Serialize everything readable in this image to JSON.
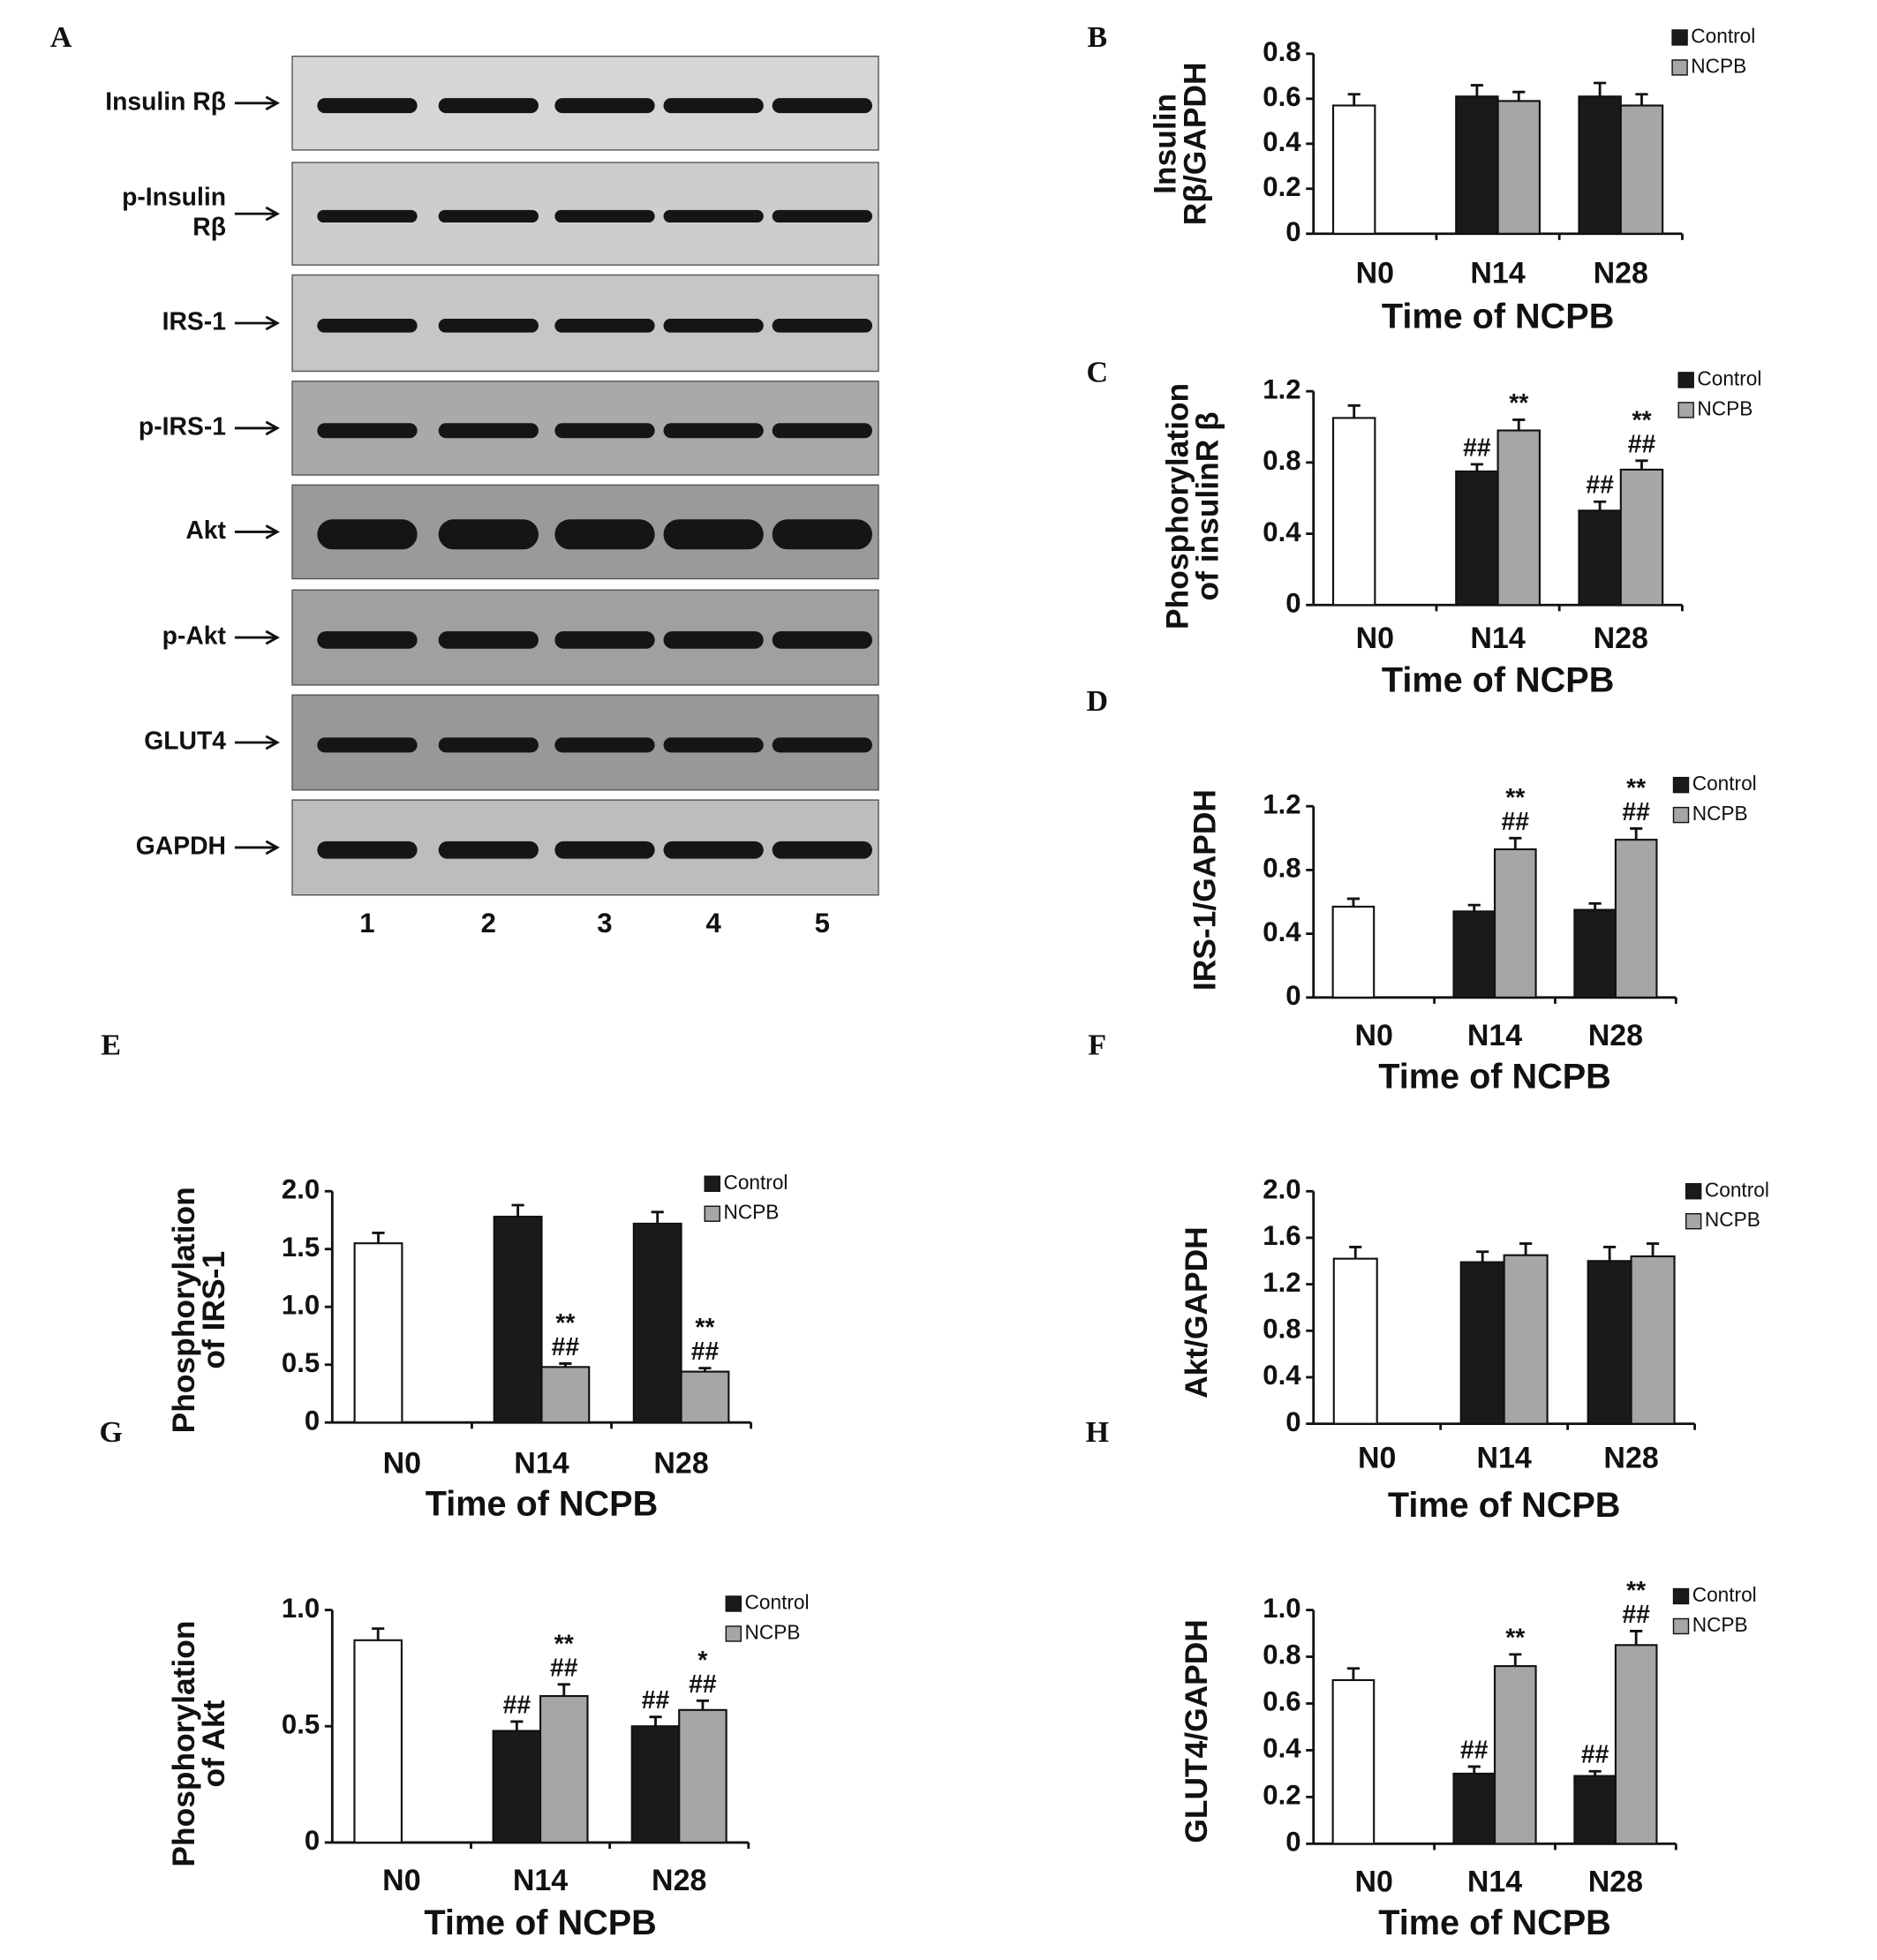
{
  "panel_labels": [
    "A",
    "B",
    "C",
    "D",
    "E",
    "F",
    "G",
    "H"
  ],
  "blot": {
    "labels": [
      [
        "Insulin Rβ"
      ],
      [
        "p-Insulin",
        "Rβ"
      ],
      [
        "IRS-1"
      ],
      [
        "p-IRS-1"
      ],
      [
        "Akt"
      ],
      [
        "p-Akt"
      ],
      [
        "GLUT4"
      ],
      [
        "GAPDH"
      ]
    ],
    "lanes": [
      "1",
      "2",
      "3",
      "4",
      "5"
    ]
  },
  "chart_data": [
    {
      "type": "bar",
      "ylabel": [
        "Insulin",
        "Rβ/GAPDH"
      ],
      "xlabel": "Time of NCPB",
      "categories": [
        "N0",
        "N14",
        "N28"
      ],
      "ylim": [
        0,
        0.8
      ],
      "yticks": [
        0,
        0.2,
        0.4,
        0.6,
        0.8
      ],
      "grid": false,
      "series": [
        {
          "color": "#ffffff",
          "values": [
            0.57,
            null,
            null
          ],
          "errors": [
            0.05,
            null,
            null
          ]
        },
        {
          "name": "Control",
          "color": "#1a1a1a",
          "values": [
            null,
            0.61,
            0.61
          ],
          "errors": [
            null,
            0.05,
            0.06
          ]
        },
        {
          "name": "NCPB",
          "color": "#a6a6a6",
          "values": [
            null,
            0.59,
            0.57
          ],
          "errors": [
            null,
            0.04,
            0.05
          ]
        }
      ]
    },
    {
      "type": "bar",
      "ylabel": [
        "Phosphorylation",
        "of insulinR β"
      ],
      "xlabel": "Time of NCPB",
      "categories": [
        "N0",
        "N14",
        "N28"
      ],
      "ylim": [
        0,
        1.2
      ],
      "yticks": [
        0,
        0.4,
        0.8,
        1.2
      ],
      "grid": false,
      "series": [
        {
          "color": "#ffffff",
          "values": [
            1.05,
            null,
            null
          ],
          "errors": [
            0.07,
            null,
            null
          ]
        },
        {
          "name": "Control",
          "color": "#1a1a1a",
          "values": [
            null,
            0.75,
            0.53
          ],
          "errors": [
            null,
            0.04,
            0.05
          ],
          "annotations": [
            null,
            [
              "##"
            ],
            [
              "##"
            ]
          ]
        },
        {
          "name": "NCPB",
          "color": "#a6a6a6",
          "values": [
            null,
            0.98,
            0.76
          ],
          "errors": [
            null,
            0.06,
            0.05
          ],
          "annotations": [
            null,
            [
              "**"
            ],
            [
              "**",
              "##"
            ]
          ]
        }
      ]
    },
    {
      "type": "bar",
      "ylabel": [
        "IRS-1/GAPDH"
      ],
      "xlabel": "Time of NCPB",
      "categories": [
        "N0",
        "N14",
        "N28"
      ],
      "ylim": [
        0,
        1.2
      ],
      "yticks": [
        0,
        0.4,
        0.8,
        1.2
      ],
      "grid": false,
      "series": [
        {
          "color": "#ffffff",
          "values": [
            0.57,
            null,
            null
          ],
          "errors": [
            0.05,
            null,
            null
          ]
        },
        {
          "name": "Control",
          "color": "#1a1a1a",
          "values": [
            null,
            0.54,
            0.55
          ],
          "errors": [
            null,
            0.04,
            0.04
          ]
        },
        {
          "name": "NCPB",
          "color": "#a6a6a6",
          "values": [
            null,
            0.93,
            0.99
          ],
          "errors": [
            null,
            0.07,
            0.07
          ],
          "annotations": [
            null,
            [
              "**",
              "##"
            ],
            [
              "**",
              "##"
            ]
          ]
        }
      ]
    },
    {
      "type": "bar",
      "ylabel": [
        "Phosphorylation",
        "of IRS-1"
      ],
      "xlabel": "Time of NCPB",
      "categories": [
        "N0",
        "N14",
        "N28"
      ],
      "ylim": [
        0,
        2
      ],
      "yticks": [
        0,
        0.5,
        {
          "value": 1,
          "label": "1.0"
        },
        1.5,
        {
          "value": 2,
          "label": "2.0"
        }
      ],
      "grid": false,
      "series": [
        {
          "color": "#ffffff",
          "values": [
            1.55,
            null,
            null
          ],
          "errors": [
            0.09,
            null,
            null
          ]
        },
        {
          "name": "Control",
          "color": "#1a1a1a",
          "values": [
            null,
            1.78,
            1.72
          ],
          "errors": [
            null,
            0.1,
            0.1
          ]
        },
        {
          "name": "NCPB",
          "color": "#a6a6a6",
          "values": [
            null,
            0.48,
            0.44
          ],
          "errors": [
            null,
            0.03,
            0.03
          ],
          "annotations": [
            null,
            [
              "**",
              "##"
            ],
            [
              "**",
              "##"
            ]
          ]
        }
      ]
    },
    {
      "type": "bar",
      "ylabel": [
        "Akt/GAPDH"
      ],
      "xlabel": "Time of NCPB",
      "categories": [
        "N0",
        "N14",
        "N28"
      ],
      "ylim": [
        0,
        2
      ],
      "yticks": [
        0,
        0.4,
        0.8,
        1.2,
        1.6,
        {
          "value": 2,
          "label": "2.0"
        }
      ],
      "grid": false,
      "series": [
        {
          "color": "#ffffff",
          "values": [
            1.42,
            null,
            null
          ],
          "errors": [
            0.1,
            null,
            null
          ]
        },
        {
          "name": "Control",
          "color": "#1a1a1a",
          "values": [
            null,
            1.39,
            1.4
          ],
          "errors": [
            null,
            0.09,
            0.12
          ]
        },
        {
          "name": "NCPB",
          "color": "#a6a6a6",
          "values": [
            null,
            1.45,
            1.44
          ],
          "errors": [
            null,
            0.1,
            0.11
          ]
        }
      ]
    },
    {
      "type": "bar",
      "ylabel": [
        "Phosphorylation",
        "of Akt"
      ],
      "xlabel": "Time of NCPB",
      "categories": [
        "N0",
        "N14",
        "N28"
      ],
      "ylim": [
        0,
        1
      ],
      "yticks": [
        0,
        0.5,
        {
          "value": 1,
          "label": "1.0"
        }
      ],
      "grid": false,
      "series": [
        {
          "color": "#ffffff",
          "values": [
            0.87,
            null,
            null
          ],
          "errors": [
            0.05,
            null,
            null
          ]
        },
        {
          "name": "Control",
          "color": "#1a1a1a",
          "values": [
            null,
            0.48,
            0.5
          ],
          "errors": [
            null,
            0.04,
            0.04
          ],
          "annotations": [
            null,
            [
              "##"
            ],
            [
              "##"
            ]
          ]
        },
        {
          "name": "NCPB",
          "color": "#a6a6a6",
          "values": [
            null,
            0.63,
            0.57
          ],
          "errors": [
            null,
            0.05,
            0.04
          ],
          "annotations": [
            null,
            [
              "**",
              "##"
            ],
            [
              "*",
              "##"
            ]
          ]
        }
      ]
    },
    {
      "type": "bar",
      "ylabel": [
        "GLUT4/GAPDH"
      ],
      "xlabel": "Time of NCPB",
      "categories": [
        "N0",
        "N14",
        "N28"
      ],
      "ylim": [
        0,
        1
      ],
      "yticks": [
        0,
        0.2,
        0.4,
        0.6,
        0.8,
        {
          "value": 1,
          "label": "1.0"
        }
      ],
      "grid": false,
      "series": [
        {
          "color": "#ffffff",
          "values": [
            0.7,
            null,
            null
          ],
          "errors": [
            0.05,
            null,
            null
          ]
        },
        {
          "name": "Control",
          "color": "#1a1a1a",
          "values": [
            null,
            0.3,
            0.29
          ],
          "errors": [
            null,
            0.03,
            0.02
          ],
          "annotations": [
            null,
            [
              "##"
            ],
            [
              "##"
            ]
          ]
        },
        {
          "name": "NCPB",
          "color": "#a6a6a6",
          "values": [
            null,
            0.76,
            0.85
          ],
          "errors": [
            null,
            0.05,
            0.06
          ],
          "annotations": [
            null,
            [
              "**"
            ],
            [
              "**",
              "##"
            ]
          ]
        }
      ]
    }
  ]
}
